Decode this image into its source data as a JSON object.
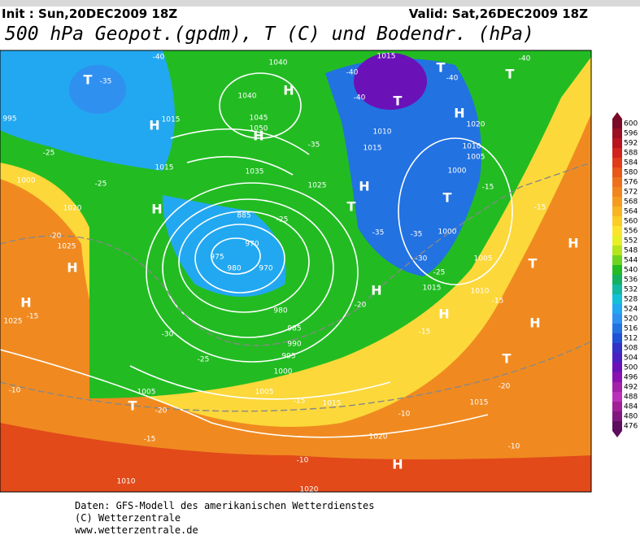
{
  "header": {
    "init": "Init : Sun,20DEC2009 18Z",
    "valid": "Valid: Sat,26DEC2009 18Z",
    "title": "500 hPa Geopot.(gpdm), T (C) und Bodendr. (hPa)"
  },
  "legend": {
    "items": [
      {
        "label": "600",
        "color": "#7a0a28"
      },
      {
        "label": "596",
        "color": "#9c0e22"
      },
      {
        "label": "592",
        "color": "#b81420"
      },
      {
        "label": "588",
        "color": "#d0241c"
      },
      {
        "label": "584",
        "color": "#e03c1a"
      },
      {
        "label": "580",
        "color": "#e8561a"
      },
      {
        "label": "576",
        "color": "#ee701c"
      },
      {
        "label": "572",
        "color": "#f2861e"
      },
      {
        "label": "568",
        "color": "#f59c20"
      },
      {
        "label": "564",
        "color": "#f8b422"
      },
      {
        "label": "560",
        "color": "#fbcc24"
      },
      {
        "label": "556",
        "color": "#fce42c"
      },
      {
        "label": "552",
        "color": "#e6f024"
      },
      {
        "label": "548",
        "color": "#b4e41c"
      },
      {
        "label": "544",
        "color": "#6ed41e"
      },
      {
        "label": "540",
        "color": "#22bc22"
      },
      {
        "label": "536",
        "color": "#12b060"
      },
      {
        "label": "532",
        "color": "#12b8a0"
      },
      {
        "label": "528",
        "color": "#14c0d8"
      },
      {
        "label": "524",
        "color": "#22a8f0"
      },
      {
        "label": "520",
        "color": "#3090f0"
      },
      {
        "label": "516",
        "color": "#2272e2"
      },
      {
        "label": "512",
        "color": "#2052d8"
      },
      {
        "label": "508",
        "color": "#3232c8"
      },
      {
        "label": "504",
        "color": "#4a20c0"
      },
      {
        "label": "500",
        "color": "#6a12b8"
      },
      {
        "label": "496",
        "color": "#8a12b0"
      },
      {
        "label": "492",
        "color": "#a222aa"
      },
      {
        "label": "488",
        "color": "#ba32ba"
      },
      {
        "label": "484",
        "color": "#a02098"
      },
      {
        "label": "480",
        "color": "#801880"
      },
      {
        "label": "476",
        "color": "#5c0e5c"
      }
    ]
  },
  "map": {
    "labels": [
      "H",
      "H",
      "H",
      "H",
      "H",
      "H",
      "H",
      "H",
      "H",
      "H",
      "H",
      "H",
      "H",
      "T",
      "T",
      "T",
      "T",
      "T",
      "T",
      "T",
      "T",
      "T",
      "1040",
      "1040",
      "1045",
      "1050",
      "1035",
      "1025",
      "1015",
      "1015",
      "1020",
      "1025",
      "1000",
      "995",
      "975",
      "980",
      "970",
      "970",
      "885",
      "980",
      "985",
      "990",
      "995",
      "1000",
      "1005",
      "1005",
      "1015",
      "1015",
      "1020",
      "1010",
      "1015",
      "1020",
      "1010",
      "1005",
      "1000",
      "1000",
      "1005",
      "1010",
      "1015",
      "1015",
      "1020",
      "1010",
      "1025",
      "-40",
      "-40",
      "-40",
      "-40",
      "-40",
      "-35",
      "-35",
      "-35",
      "-35",
      "-30",
      "-30",
      "-25",
      "-25",
      "-25",
      "-25",
      "-25",
      "-20",
      "-20",
      "-20",
      "-15",
      "-15",
      "-15",
      "-15",
      "-15",
      "-15",
      "-10",
      "-10",
      "-10",
      "-10",
      "-20",
      "-15"
    ]
  },
  "footer": {
    "lines": [
      "Daten: GFS-Modell des amerikanischen Wetterdienstes",
      "(C) Wetterzentrale",
      "www.wetterzentrale.de"
    ]
  }
}
